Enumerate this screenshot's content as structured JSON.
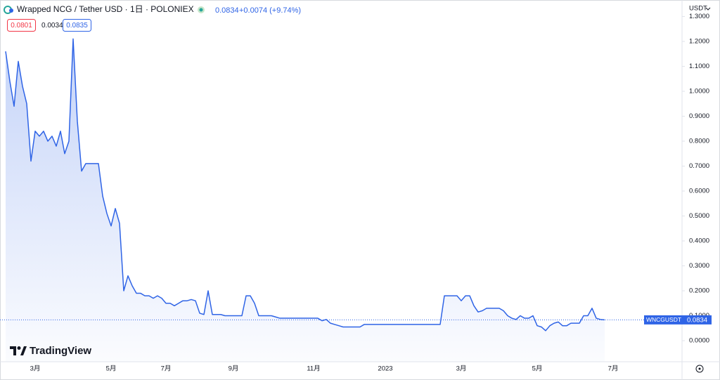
{
  "chart_data": {
    "type": "area",
    "title": "Wrapped NCG / Tether USD · 1日 · POLONIEX",
    "last_price": 0.0834,
    "change": "+0.0074 (+9.74%)",
    "bid": 0.0801,
    "spread": 0.0034,
    "ask": 0.0835,
    "currency": "USDT",
    "symbol": "WNCGUSDT",
    "watermark": "TradingView",
    "color": "#2f64e6",
    "grid": false,
    "categories": [
      null,
      null,
      null,
      null,
      null,
      null,
      null,
      "3月",
      null,
      null,
      null,
      null,
      null,
      null,
      null,
      null,
      null,
      null,
      null,
      null,
      null,
      null,
      null,
      null,
      null,
      "5月",
      null,
      null,
      null,
      null,
      null,
      null,
      null,
      null,
      null,
      null,
      null,
      null,
      "7月",
      null,
      null,
      null,
      null,
      null,
      null,
      null,
      null,
      null,
      null,
      null,
      null,
      null,
      null,
      null,
      "9月",
      null,
      null,
      null,
      null,
      null,
      null,
      null,
      null,
      null,
      null,
      null,
      null,
      null,
      null,
      null,
      null,
      null,
      null,
      "11月",
      null,
      null,
      null,
      null,
      null,
      null,
      null,
      null,
      null,
      null,
      null,
      null,
      null,
      null,
      null,
      null,
      "2023",
      null,
      null,
      null,
      null,
      null,
      null,
      null,
      null,
      null,
      null,
      null,
      null,
      null,
      null,
      null,
      null,
      null,
      "3月",
      null,
      null,
      null,
      null,
      null,
      null,
      null,
      null,
      null,
      null,
      null,
      null,
      null,
      null,
      null,
      null,
      null,
      "5月",
      null,
      null,
      null,
      null,
      null,
      null,
      null,
      null,
      null,
      null,
      null,
      null,
      null,
      null,
      null,
      null,
      null,
      "7月",
      null,
      null,
      null,
      null,
      null,
      null,
      null,
      null,
      null,
      null,
      null,
      null,
      null,
      null,
      null
    ],
    "values": [
      1.16,
      1.04,
      0.94,
      1.12,
      1.02,
      0.95,
      0.72,
      0.84,
      0.82,
      0.84,
      0.8,
      0.82,
      0.78,
      0.84,
      0.75,
      0.8,
      1.21,
      0.88,
      0.68,
      0.71,
      0.71,
      0.71,
      0.71,
      0.58,
      0.51,
      0.46,
      0.53,
      0.47,
      0.2,
      0.26,
      0.22,
      0.19,
      0.19,
      0.18,
      0.18,
      0.17,
      0.18,
      0.17,
      0.15,
      0.15,
      0.14,
      0.15,
      0.16,
      0.16,
      0.165,
      0.16,
      0.11,
      0.105,
      0.2,
      0.105,
      0.105,
      0.105,
      0.1,
      0.1,
      0.1,
      0.1,
      0.1,
      0.18,
      0.18,
      0.15,
      0.1,
      0.1,
      0.1,
      0.1,
      0.095,
      0.09,
      0.09,
      0.09,
      0.09,
      0.09,
      0.09,
      0.09,
      0.09,
      0.09,
      0.09,
      0.08,
      0.085,
      0.07,
      0.065,
      0.06,
      0.055,
      0.055,
      0.055,
      0.055,
      0.055,
      0.065,
      0.065,
      0.065,
      0.065,
      0.065,
      0.065,
      0.065,
      0.065,
      0.065,
      0.065,
      0.065,
      0.065,
      0.065,
      0.065,
      0.065,
      0.065,
      0.065,
      0.065,
      0.065,
      0.18,
      0.18,
      0.18,
      0.18,
      0.16,
      0.18,
      0.18,
      0.14,
      0.115,
      0.12,
      0.13,
      0.13,
      0.13,
      0.13,
      0.12,
      0.1,
      0.09,
      0.085,
      0.1,
      0.09,
      0.09,
      0.1,
      0.06,
      0.055,
      0.04,
      0.06,
      0.07,
      0.075,
      0.06,
      0.06,
      0.07,
      0.07,
      0.07,
      0.1,
      0.1,
      0.13,
      0.09,
      0.085,
      0.0834,
      null,
      null,
      null,
      null,
      null,
      null,
      null,
      null,
      null,
      null,
      null,
      null,
      null,
      null,
      null,
      null,
      null
    ],
    "ylim": [
      -0.0845,
      1.352
    ],
    "yticks": [
      {
        "value": 0,
        "label": "0.0000"
      },
      {
        "value": 0.1,
        "label": "0.1000"
      },
      {
        "value": 0.2,
        "label": "0.2000"
      },
      {
        "value": 0.3,
        "label": "0.3000"
      },
      {
        "value": 0.4,
        "label": "0.4000"
      },
      {
        "value": 0.5,
        "label": "0.5000"
      },
      {
        "value": 0.6,
        "label": "0.6000"
      },
      {
        "value": 0.7,
        "label": "0.7000"
      },
      {
        "value": 0.8,
        "label": "0.8000"
      },
      {
        "value": 0.9,
        "label": "0.9000"
      },
      {
        "value": 1.0,
        "label": "1.0000"
      },
      {
        "value": 1.1,
        "label": "1.1000"
      },
      {
        "value": 1.2,
        "label": "1.2000"
      },
      {
        "value": 1.3,
        "label": "1.3000"
      }
    ]
  }
}
